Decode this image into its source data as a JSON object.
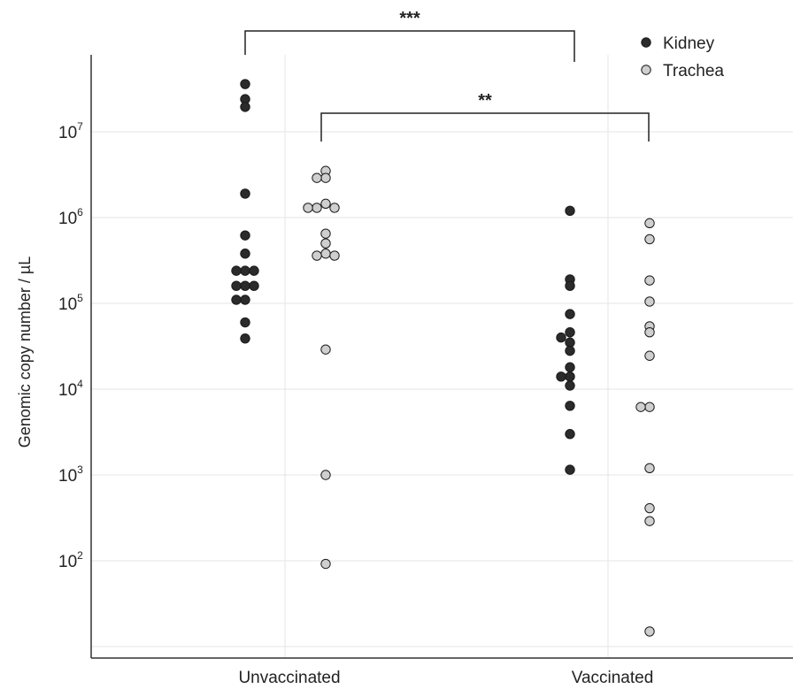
{
  "chart_data": {
    "type": "scatter",
    "ylabel": "Genomic copy number / µL",
    "yscale": "log10",
    "ylim": [
      6,
      700000000
    ],
    "grid": true,
    "legend_position": "top-right",
    "categories": [
      "Unvaccinated",
      "Vaccinated"
    ],
    "yticks": [
      {
        "base": "10",
        "exp": "2",
        "value": 100
      },
      {
        "base": "10",
        "exp": "3",
        "value": 1000
      },
      {
        "base": "10",
        "exp": "4",
        "value": 10000
      },
      {
        "base": "10",
        "exp": "5",
        "value": 100000
      },
      {
        "base": "10",
        "exp": "6",
        "value": 1000000
      },
      {
        "base": "10",
        "exp": "7",
        "value": 10000000
      }
    ],
    "series": [
      {
        "name": "Kidney",
        "color": "#2b2b2b",
        "points": [
          {
            "group": "Unvaccinated",
            "y": 36000000
          },
          {
            "group": "Unvaccinated",
            "y": 24000000
          },
          {
            "group": "Unvaccinated",
            "y": 19500000
          },
          {
            "group": "Unvaccinated",
            "y": 1900000
          },
          {
            "group": "Unvaccinated",
            "y": 620000
          },
          {
            "group": "Unvaccinated",
            "y": 380000
          },
          {
            "group": "Unvaccinated",
            "y": 240000
          },
          {
            "group": "Unvaccinated",
            "y": 240000
          },
          {
            "group": "Unvaccinated",
            "y": 240000
          },
          {
            "group": "Unvaccinated",
            "y": 160000
          },
          {
            "group": "Unvaccinated",
            "y": 160000
          },
          {
            "group": "Unvaccinated",
            "y": 160000
          },
          {
            "group": "Unvaccinated",
            "y": 110000
          },
          {
            "group": "Unvaccinated",
            "y": 110000
          },
          {
            "group": "Unvaccinated",
            "y": 60000
          },
          {
            "group": "Unvaccinated",
            "y": 39000
          },
          {
            "group": "Vaccinated",
            "y": 1200000
          },
          {
            "group": "Vaccinated",
            "y": 190000
          },
          {
            "group": "Vaccinated",
            "y": 160000
          },
          {
            "group": "Vaccinated",
            "y": 75000
          },
          {
            "group": "Vaccinated",
            "y": 46000
          },
          {
            "group": "Vaccinated",
            "y": 40000
          },
          {
            "group": "Vaccinated",
            "y": 35000
          },
          {
            "group": "Vaccinated",
            "y": 28000
          },
          {
            "group": "Vaccinated",
            "y": 18000
          },
          {
            "group": "Vaccinated",
            "y": 14000
          },
          {
            "group": "Vaccinated",
            "y": 14000
          },
          {
            "group": "Vaccinated",
            "y": 11000
          },
          {
            "group": "Vaccinated",
            "y": 6400
          },
          {
            "group": "Vaccinated",
            "y": 3000
          },
          {
            "group": "Vaccinated",
            "y": 1150
          }
        ]
      },
      {
        "name": "Trachea",
        "color": "#cfcfcf",
        "points": [
          {
            "group": "Unvaccinated",
            "y": 3500000
          },
          {
            "group": "Unvaccinated",
            "y": 2900000
          },
          {
            "group": "Unvaccinated",
            "y": 2900000
          },
          {
            "group": "Unvaccinated",
            "y": 1450000
          },
          {
            "group": "Unvaccinated",
            "y": 1300000
          },
          {
            "group": "Unvaccinated",
            "y": 1300000
          },
          {
            "group": "Unvaccinated",
            "y": 1300000
          },
          {
            "group": "Unvaccinated",
            "y": 650000
          },
          {
            "group": "Unvaccinated",
            "y": 500000
          },
          {
            "group": "Unvaccinated",
            "y": 380000
          },
          {
            "group": "Unvaccinated",
            "y": 360000
          },
          {
            "group": "Unvaccinated",
            "y": 360000
          },
          {
            "group": "Unvaccinated",
            "y": 29000
          },
          {
            "group": "Unvaccinated",
            "y": 1000
          },
          {
            "group": "Unvaccinated",
            "y": 92
          },
          {
            "group": "Vaccinated",
            "y": 860000
          },
          {
            "group": "Vaccinated",
            "y": 560000
          },
          {
            "group": "Vaccinated",
            "y": 185000
          },
          {
            "group": "Vaccinated",
            "y": 105000
          },
          {
            "group": "Vaccinated",
            "y": 54000
          },
          {
            "group": "Vaccinated",
            "y": 46000
          },
          {
            "group": "Vaccinated",
            "y": 24500
          },
          {
            "group": "Vaccinated",
            "y": 6200
          },
          {
            "group": "Vaccinated",
            "y": 6200
          },
          {
            "group": "Vaccinated",
            "y": 1200
          },
          {
            "group": "Vaccinated",
            "y": 410
          },
          {
            "group": "Vaccinated",
            "y": 290
          },
          {
            "group": "Vaccinated",
            "y": 15
          }
        ]
      }
    ],
    "annotations": [
      {
        "label": "***",
        "from": "Unvaccinated Kidney",
        "to": "Vaccinated Kidney"
      },
      {
        "label": "**",
        "from": "Unvaccinated Trachea",
        "to": "Vaccinated Trachea"
      }
    ]
  }
}
